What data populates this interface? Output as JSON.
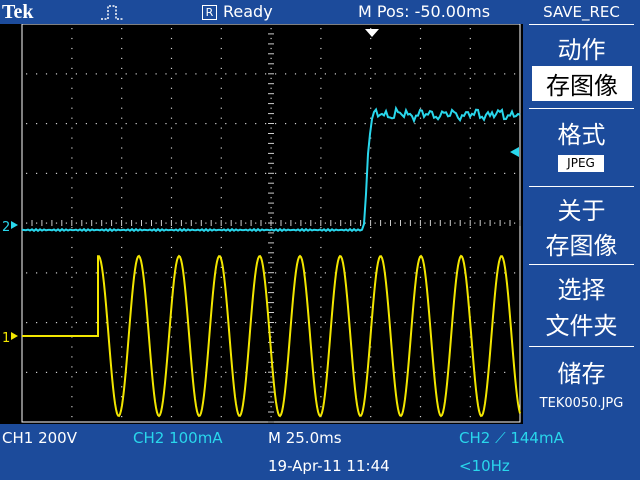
{
  "header": {
    "brand": "Tek",
    "acquisition_icon": "single-pulse-trigger-icon",
    "run_badge": "R",
    "run_state": "Ready",
    "m_pos": "M Pos: -50.00ms"
  },
  "menu": {
    "title": "SAVE_REC",
    "action_label": "动作",
    "action_value": "存图像",
    "format_label": "格式",
    "format_value": "JPEG",
    "about_line1": "关于",
    "about_line2": "存图像",
    "folder_line1": "选择",
    "folder_line2": "文件夹",
    "save_label": "储存",
    "filename": "TEK0050.JPG"
  },
  "status": {
    "ch1_scale": "CH1  200V",
    "ch2_scale": "CH2  100mA",
    "timebase": "M 25.0ms",
    "trigger": "CH2 ⟋ 144mA",
    "date": "19-Apr-11 11:44",
    "freq": "<10Hz"
  },
  "markers": {
    "ch1": "1",
    "ch2": "2"
  },
  "colors": {
    "panel_blue": "#1c4b9b",
    "ch1_yellow": "#f2e600",
    "ch2_cyan": "#29d7ec"
  }
}
